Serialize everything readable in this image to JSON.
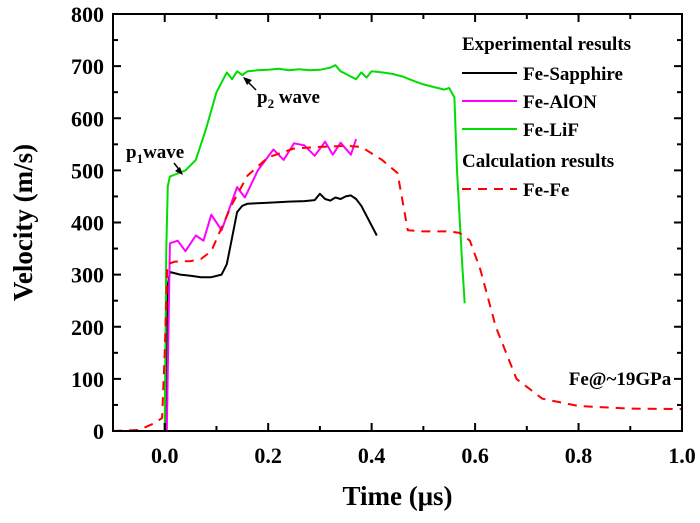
{
  "chart_data": {
    "type": "line",
    "title": "",
    "xlabel": "Time (μs)",
    "ylabel": "Velocity (m/s)",
    "xlim": [
      -0.1,
      1.0
    ],
    "ylim": [
      0,
      800
    ],
    "xticks": [
      0.0,
      0.2,
      0.4,
      0.6,
      0.8,
      1.0
    ],
    "xtick_labels": [
      "0.0",
      "0.2",
      "0.4",
      "0.6",
      "0.8",
      "1.0"
    ],
    "yticks": [
      0,
      100,
      200,
      300,
      400,
      500,
      600,
      700,
      800
    ],
    "ytick_labels": [
      "0",
      "100",
      "200",
      "300",
      "400",
      "500",
      "600",
      "700",
      "800"
    ],
    "grid": false,
    "legend": {
      "placement": "top-right",
      "groups": [
        {
          "heading": "Experimental results",
          "entries": [
            "Fe-Sapphire",
            "Fe-AlON",
            "Fe-LiF"
          ]
        },
        {
          "heading": "Calculation results",
          "entries": [
            "Fe-Fe"
          ]
        }
      ]
    },
    "annotations": [
      {
        "text_main": "p",
        "text_sub": "1",
        "text_rest": "wave",
        "x": 0.02,
        "y": 495
      },
      {
        "text_main": "p",
        "text_sub": "2",
        "text_rest": " wave",
        "x": 0.14,
        "y": 690
      },
      {
        "text": "Fe@~19GPa",
        "x": 0.8,
        "y": 100
      }
    ],
    "series": [
      {
        "name": "Fe-Sapphire",
        "color": "#000000",
        "dash": "solid",
        "x": [
          -0.1,
          0.003,
          0.004,
          0.005,
          0.006,
          0.01,
          0.03,
          0.05,
          0.07,
          0.09,
          0.11,
          0.12,
          0.13,
          0.14,
          0.15,
          0.16,
          0.2,
          0.24,
          0.27,
          0.29,
          0.3,
          0.31,
          0.32,
          0.33,
          0.34,
          0.35,
          0.36,
          0.37,
          0.38,
          0.41
        ],
        "y": [
          0,
          0,
          250,
          150,
          280,
          305,
          300,
          298,
          295,
          295,
          300,
          320,
          370,
          420,
          432,
          436,
          438,
          440,
          441,
          443,
          455,
          445,
          442,
          448,
          445,
          450,
          452,
          445,
          432,
          375
        ]
      },
      {
        "name": "Fe-AlON",
        "color": "#ff00ff",
        "dash": "solid",
        "x": [
          -0.1,
          0.004,
          0.01,
          0.025,
          0.04,
          0.06,
          0.075,
          0.09,
          0.11,
          0.14,
          0.155,
          0.18,
          0.21,
          0.23,
          0.25,
          0.27,
          0.29,
          0.31,
          0.325,
          0.34,
          0.36,
          0.37
        ],
        "y": [
          0,
          0,
          360,
          365,
          345,
          375,
          365,
          415,
          385,
          468,
          448,
          500,
          540,
          520,
          552,
          548,
          528,
          555,
          530,
          553,
          530,
          560
        ]
      },
      {
        "name": "Fe-LiF",
        "color": "#00dd00",
        "dash": "solid",
        "x": [
          -0.1,
          0.0,
          0.003,
          0.006,
          0.01,
          0.02,
          0.04,
          0.06,
          0.08,
          0.1,
          0.12,
          0.13,
          0.14,
          0.15,
          0.16,
          0.18,
          0.2,
          0.22,
          0.24,
          0.26,
          0.28,
          0.3,
          0.32,
          0.33,
          0.34,
          0.35,
          0.36,
          0.37,
          0.38,
          0.39,
          0.4,
          0.42,
          0.44,
          0.46,
          0.48,
          0.5,
          0.52,
          0.54,
          0.55,
          0.56,
          0.565,
          0.575,
          0.58
        ],
        "y": [
          0,
          0,
          350,
          470,
          488,
          492,
          500,
          520,
          580,
          650,
          688,
          675,
          690,
          683,
          690,
          692,
          693,
          695,
          692,
          694,
          692,
          693,
          697,
          702,
          690,
          685,
          680,
          675,
          688,
          678,
          690,
          688,
          685,
          680,
          672,
          665,
          660,
          655,
          658,
          640,
          500,
          320,
          245
        ]
      },
      {
        "name": "Fe-Fe",
        "color": "#ff0000",
        "dash": "dashed",
        "x": [
          -0.1,
          -0.05,
          -0.02,
          -0.005,
          0.0,
          0.005,
          0.02,
          0.05,
          0.07,
          0.09,
          0.11,
          0.13,
          0.16,
          0.2,
          0.25,
          0.3,
          0.35,
          0.38,
          0.42,
          0.45,
          0.47,
          0.5,
          0.55,
          0.57,
          0.59,
          0.61,
          0.64,
          0.68,
          0.73,
          0.8,
          0.9,
          1.0
        ],
        "y": [
          0,
          2,
          15,
          25,
          150,
          320,
          325,
          326,
          330,
          345,
          390,
          435,
          490,
          525,
          542,
          545,
          547,
          545,
          520,
          495,
          385,
          383,
          383,
          380,
          365,
          310,
          200,
          100,
          62,
          48,
          43,
          42
        ]
      }
    ]
  }
}
